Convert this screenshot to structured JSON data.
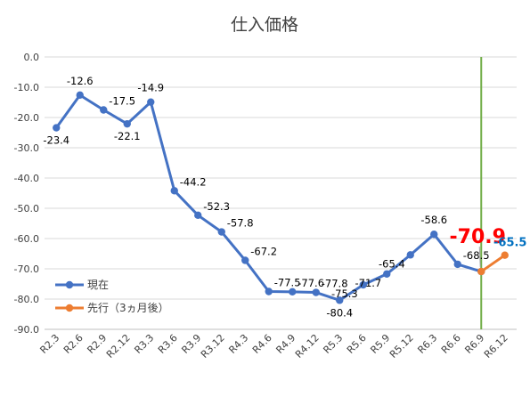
{
  "chart_data": {
    "type": "line",
    "title": "仕入価格",
    "categories": [
      "R2.3",
      "R2.6",
      "R2.9",
      "R2.12",
      "R3.3",
      "R3.6",
      "R3.9",
      "R3.12",
      "R4.3",
      "R4.6",
      "R4.9",
      "R4.12",
      "R5.3",
      "R5.6",
      "R5.9",
      "R5.12",
      "R6.3",
      "R6.6",
      "R6.9",
      "R6.12"
    ],
    "ylim": [
      -90,
      0
    ],
    "yticks": [
      "0.0",
      "-10.0",
      "-20.0",
      "-30.0",
      "-40.0",
      "-50.0",
      "-60.0",
      "-70.0",
      "-80.0",
      "-90.0"
    ],
    "grid": true,
    "legend_position": "bottom-left",
    "marker_line_at": "R6.9",
    "series": [
      {
        "name": "現在",
        "color": "#4472C4",
        "values": [
          -23.4,
          -12.6,
          -17.5,
          -22.1,
          -14.9,
          -44.2,
          -52.3,
          -57.8,
          -67.2,
          -77.5,
          -77.6,
          -77.8,
          -80.4,
          -75.3,
          -71.7,
          -65.4,
          -58.6,
          -68.5,
          -70.9,
          null
        ],
        "labels": [
          "-23.4",
          "-12.6",
          "-17.5",
          "-22.1",
          "-14.9",
          "-44.2",
          "-52.3",
          "-57.8",
          "-67.2",
          "-77.5",
          "-77.6",
          "-77.8",
          "-80.4",
          "-75.3",
          "-71.7",
          "-65.4",
          "-58.6",
          "-68.5",
          "",
          ""
        ]
      },
      {
        "name": "先行（3ヵ月後）",
        "color": "#ED7D31",
        "values": [
          null,
          null,
          null,
          null,
          null,
          null,
          null,
          null,
          null,
          null,
          null,
          null,
          null,
          null,
          null,
          null,
          null,
          null,
          -70.9,
          -65.5
        ],
        "labels": [
          "",
          "",
          "",
          "",
          "",
          "",
          "",
          "",
          "",
          "",
          "",
          "",
          "",
          "",
          "",
          "",
          "",
          "",
          "",
          ""
        ]
      }
    ],
    "highlight_labels": [
      {
        "text": "-70.9",
        "color": "#FF0000",
        "category": "R6.9"
      },
      {
        "text": "-65.5",
        "color": "#0070C0",
        "category": "R6.12"
      }
    ],
    "vertical_line_color": "#70AD47"
  }
}
